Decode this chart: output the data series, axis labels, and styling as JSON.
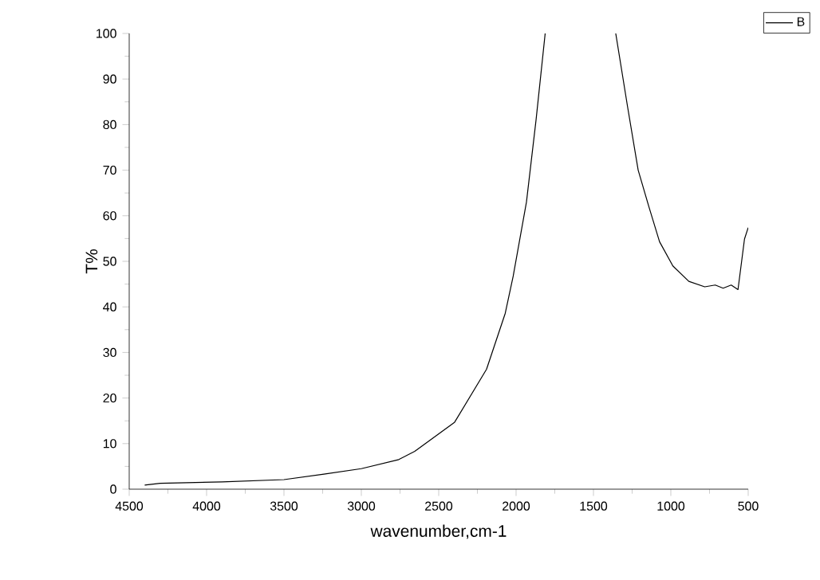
{
  "chart_data": {
    "type": "line",
    "xlabel": "wavenumber,cm-1",
    "ylabel": "T%",
    "xlim": [
      4500,
      500
    ],
    "xticks": [
      4500,
      4000,
      3500,
      3000,
      2500,
      2000,
      1500,
      1000,
      500
    ],
    "ylim": [
      0,
      100
    ],
    "yticks": [
      0,
      10,
      20,
      30,
      40,
      50,
      60,
      70,
      80,
      90,
      100
    ],
    "grid": false,
    "legend": "top right",
    "marker": "none",
    "line_style": "solid",
    "x": [
      4400,
      4300,
      3900,
      3500,
      3242,
      3000,
      2758,
      2655,
      2586,
      2397,
      2191,
      2070,
      2019,
      1933,
      1871,
      1812,
      1600,
      1356,
      1280,
      1211,
      1142,
      1073,
      987,
      884,
      781,
      713,
      662,
      610,
      566,
      524,
      500
    ],
    "series": [
      {
        "name": "B",
        "color": "#000000",
        "values": [
          0.9,
          1.3,
          1.6,
          2.1,
          3.3,
          4.5,
          6.5,
          8.3,
          10.0,
          14.7,
          26.3,
          38.6,
          46.7,
          63,
          81,
          100,
          null,
          100,
          84,
          70,
          62,
          54.3,
          49,
          45.6,
          44.4,
          44.8,
          44.1,
          44.8,
          43.8,
          54.9,
          57.4
        ]
      }
    ]
  }
}
